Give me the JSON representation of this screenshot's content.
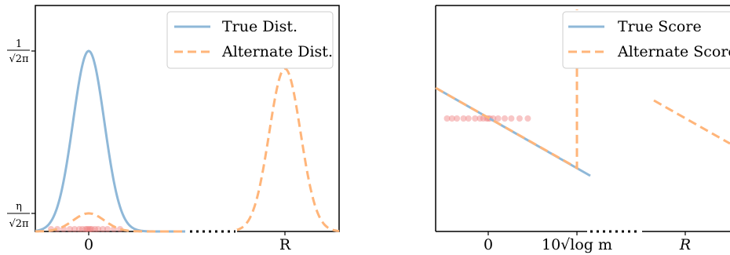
{
  "chart_data": [
    {
      "type": "line",
      "panel": "left",
      "xlabel": "",
      "ylabel": "",
      "x_ticks": [
        "0",
        "R"
      ],
      "y_ticks": [
        {
          "num": "η",
          "den": "√2π",
          "value": 0.04
        },
        {
          "num": "1",
          "den": "√2π",
          "value": 0.3989
        }
      ],
      "axis_break": "x",
      "legend": {
        "position": "top-right",
        "entries": [
          {
            "label": "True Dist.",
            "color": "#8fb8d8",
            "style": "solid"
          },
          {
            "label": "Alternate Dist.",
            "color": "#ffb57a",
            "style": "dashed"
          }
        ]
      },
      "series": [
        {
          "name": "True Dist.",
          "curve": "gaussian",
          "mean": 0,
          "sd": 1,
          "peak": 0.3989
        },
        {
          "name": "Alternate Dist.",
          "curve": "mixture",
          "components": [
            {
              "mean": 0,
              "peak": 0.04
            },
            {
              "mean": "R",
              "peak": 0.36
            }
          ]
        }
      ],
      "samples": {
        "color": "#f08080",
        "y": 0,
        "x": [
          -2.4,
          -2.0,
          -1.6,
          -1.2,
          -0.9,
          -0.6,
          -0.4,
          -0.2,
          -0.1,
          0.0,
          0.1,
          0.2,
          0.4,
          0.6,
          0.9,
          1.2,
          1.6,
          2.0
        ]
      }
    },
    {
      "type": "line",
      "panel": "right",
      "xlabel": "",
      "ylabel": "",
      "x_ticks": [
        "0",
        "10√log m",
        "R"
      ],
      "axis_break": "x",
      "legend": {
        "position": "top-right",
        "entries": [
          {
            "label": "True Score",
            "color": "#8fb8d8",
            "style": "solid"
          },
          {
            "label": "Alternate Score",
            "color": "#ffb57a",
            "style": "dashed"
          }
        ]
      },
      "series": [
        {
          "name": "True Score",
          "curve": "linear",
          "slope": -1
        },
        {
          "name": "Alternate Score",
          "curve": "piecewise-linear",
          "slope": -1,
          "jump_at": "10√log m"
        }
      ],
      "samples": {
        "color": "#f08080",
        "x": [
          -2.5,
          -2.2,
          -1.9,
          -1.5,
          -1.2,
          -0.8,
          -0.5,
          -0.3,
          -0.1,
          0.0,
          0.1,
          0.3,
          0.6,
          1.0,
          1.4,
          1.9,
          2.4
        ]
      }
    }
  ]
}
